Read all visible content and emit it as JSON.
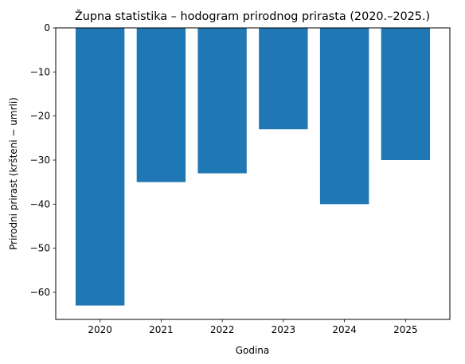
{
  "chart_data": {
    "type": "bar",
    "title": "Župna statistika – hodogram prirodnog prirasta (2020.–2025.)",
    "xlabel": "Godina",
    "ylabel": "Prirodni prirast (kršteni − umrli)",
    "categories": [
      "2020",
      "2021",
      "2022",
      "2023",
      "2024",
      "2025"
    ],
    "values": [
      -63,
      -35,
      -33,
      -23,
      -40,
      -30
    ],
    "ylim": [
      -66.15,
      0
    ],
    "yticks": [
      0,
      -10,
      -20,
      -30,
      -40,
      -50,
      -60
    ],
    "ytick_labels": [
      "0",
      "−10",
      "−20",
      "−30",
      "−40",
      "−50",
      "−60"
    ],
    "bar_color": "#1f77b4",
    "grid": false,
    "legend": "none"
  }
}
